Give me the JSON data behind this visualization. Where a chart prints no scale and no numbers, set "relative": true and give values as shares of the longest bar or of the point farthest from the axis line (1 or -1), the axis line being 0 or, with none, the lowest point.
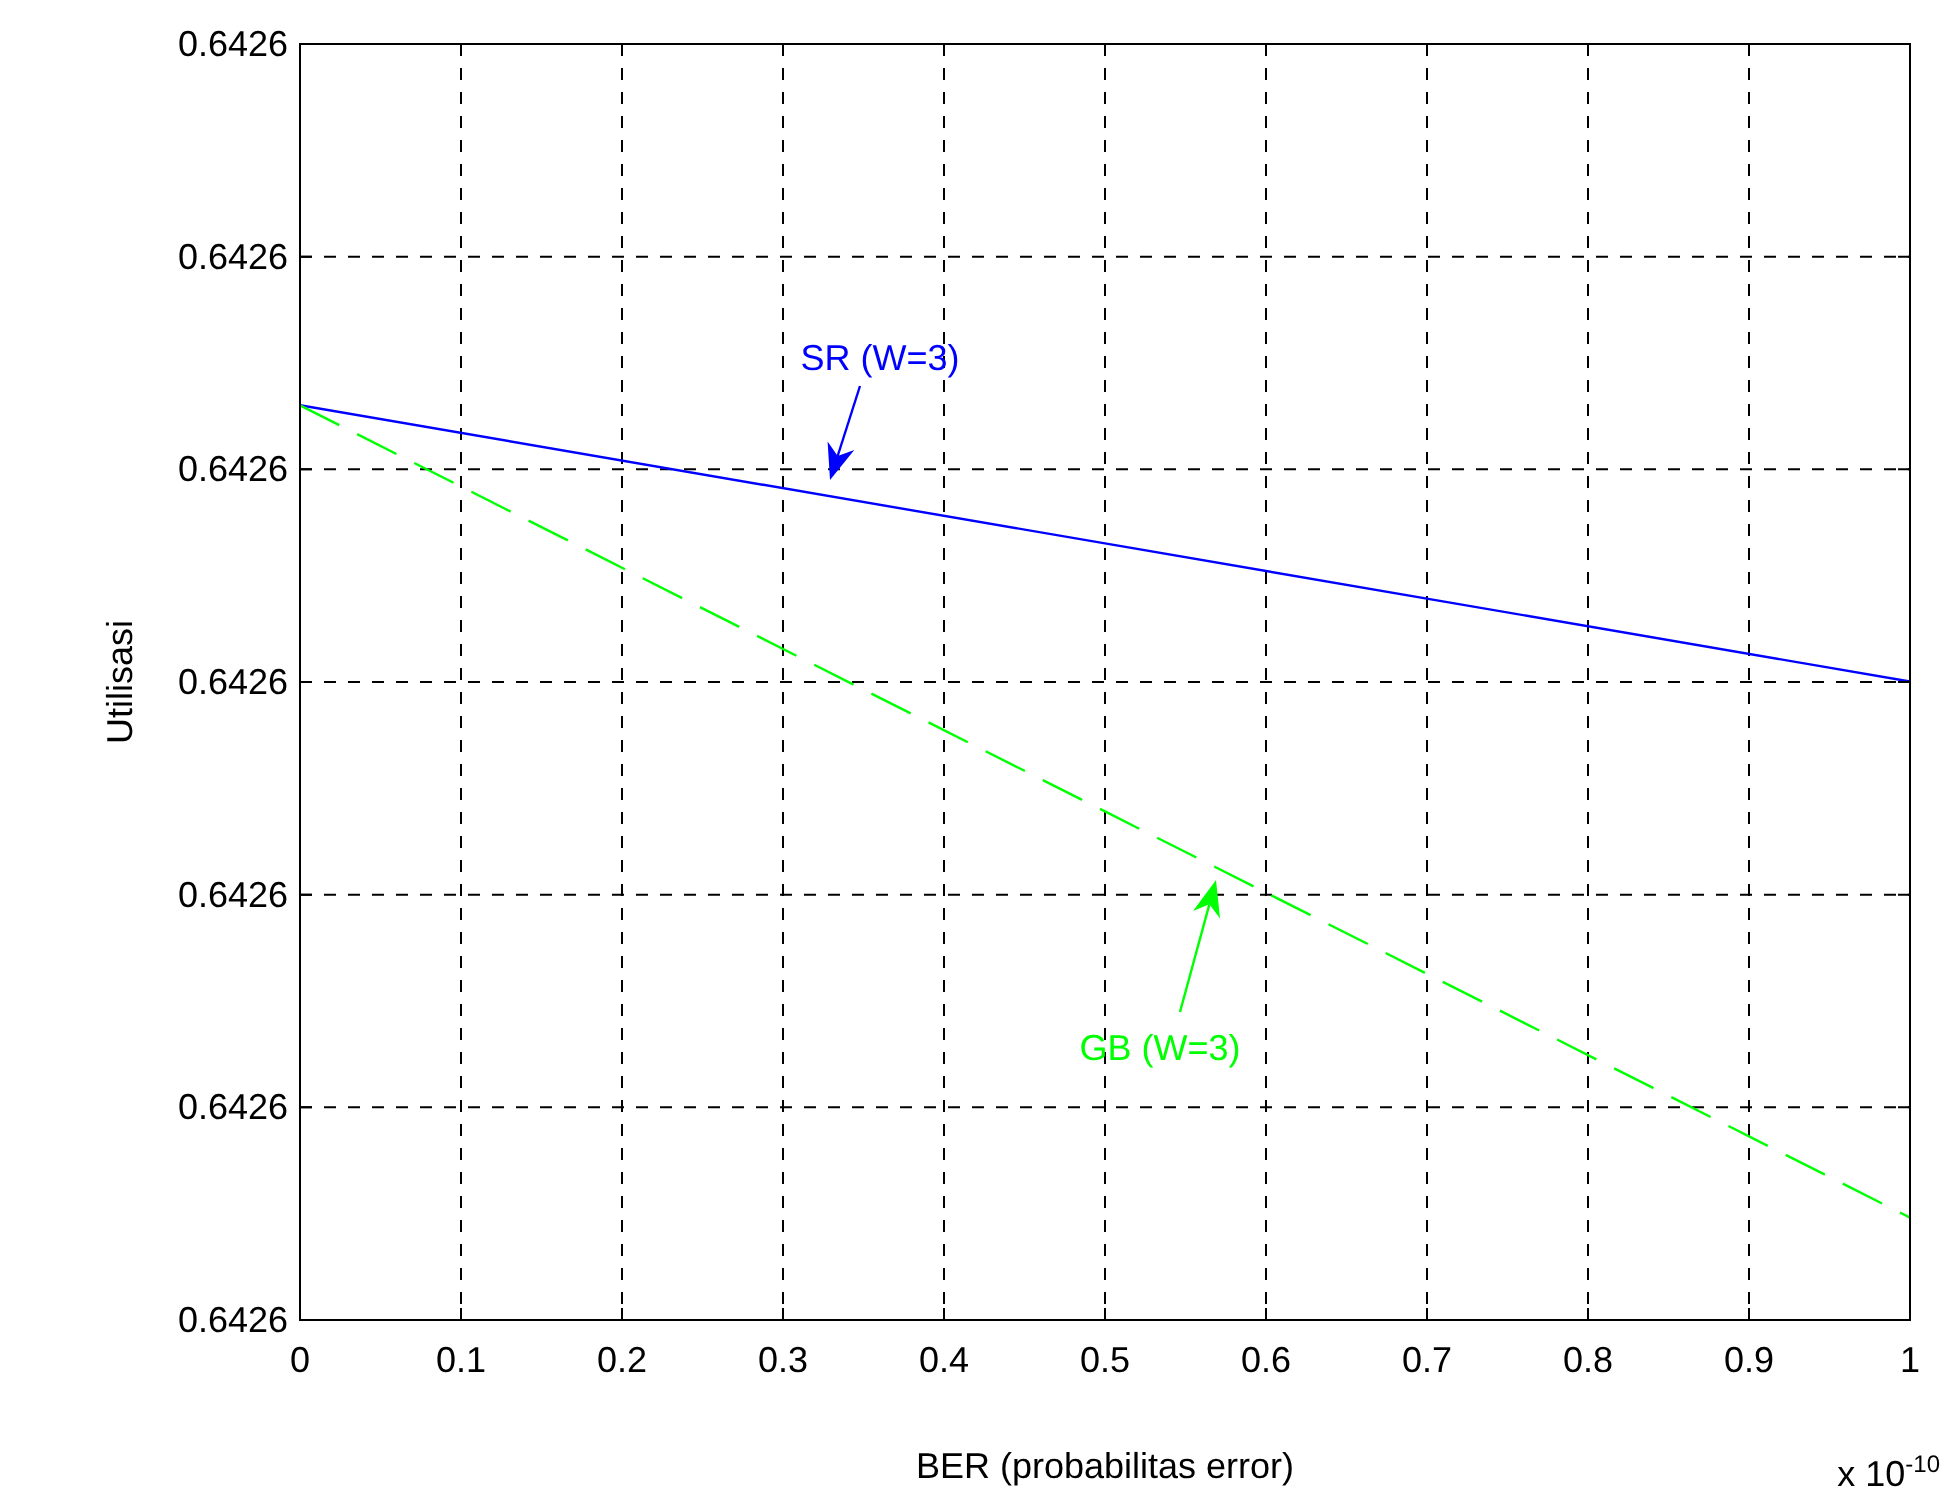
{
  "chart_data": {
    "type": "line",
    "relative": true,
    "xlabel": "BER (probabilitas error)",
    "ylabel": "Utilisasi",
    "x": [
      0,
      0.5,
      1
    ],
    "series": [
      {
        "color": "#0000ff",
        "values": [
          1,
          0.849,
          0.698
        ],
        "line_style": "solid"
      },
      {
        "color": "#00ff00",
        "values": [
          1,
          0.556,
          0.112
        ],
        "line_style": "dashed"
      }
    ],
    "xlim": [
      0,
      1
    ],
    "xticks": [
      0,
      0.1,
      0.2,
      0.3,
      0.4,
      0.5,
      0.6,
      0.7,
      0.8,
      0.9,
      1
    ],
    "grid": true,
    "marker": "none",
    "annotations": [
      "SR (W=3)",
      "GB (W=3)",
      "x 10$^{-10}$",
      "0.6426",
      "0.6426",
      "0.6426",
      "0.6426",
      "0.6426",
      "0.6426",
      "0.6426"
    ]
  }
}
